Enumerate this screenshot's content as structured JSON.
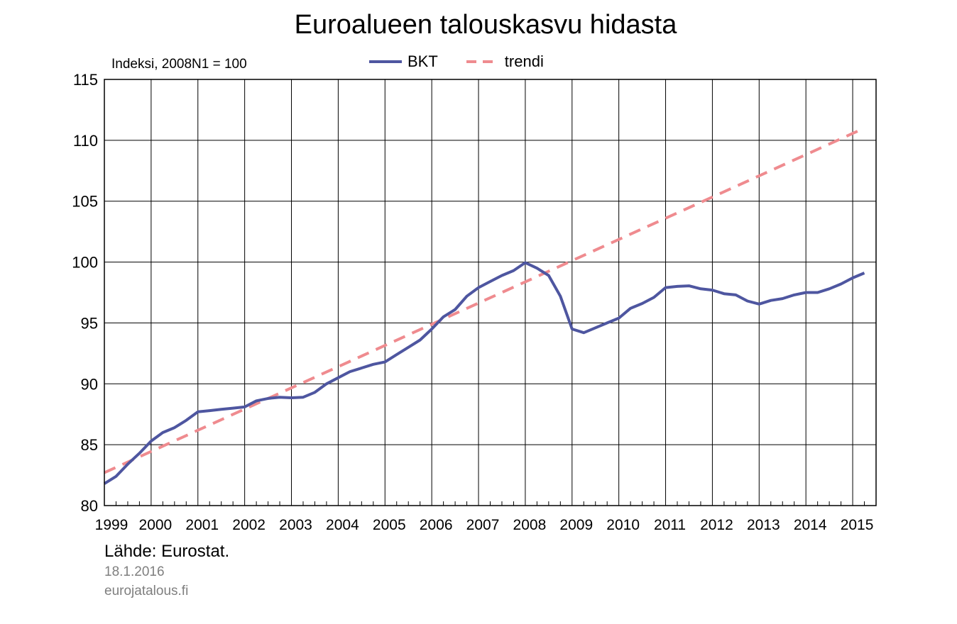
{
  "chart_data": {
    "type": "line",
    "title": "Euroalueen talouskasvu hidasta",
    "subtitle": "Indeksi, 2008N1 = 100",
    "ylim": [
      80,
      115
    ],
    "y_ticks": [
      "80",
      "85",
      "90",
      "95",
      "100",
      "105",
      "110",
      "115"
    ],
    "x_ticks": [
      "1999",
      "2000",
      "2001",
      "2002",
      "2003",
      "2004",
      "2005",
      "2006",
      "2007",
      "2008",
      "2009",
      "2010",
      "2011",
      "2012",
      "2013",
      "2014",
      "2015"
    ],
    "grid": true,
    "legend_position": "top-center",
    "series": [
      {
        "name": "BKT",
        "color": "#4e56a0",
        "style": "solid",
        "x": [
          1999.0,
          1999.25,
          1999.5,
          1999.75,
          2000.0,
          2000.25,
          2000.5,
          2000.75,
          2001.0,
          2001.25,
          2001.5,
          2001.75,
          2002.0,
          2002.25,
          2002.5,
          2002.75,
          2003.0,
          2003.25,
          2003.5,
          2003.75,
          2004.0,
          2004.25,
          2004.5,
          2004.75,
          2005.0,
          2005.25,
          2005.5,
          2005.75,
          2006.0,
          2006.25,
          2006.5,
          2006.75,
          2007.0,
          2007.25,
          2007.5,
          2007.75,
          2008.0,
          2008.25,
          2008.5,
          2008.75,
          2009.0,
          2009.25,
          2009.5,
          2009.75,
          2010.0,
          2010.25,
          2010.5,
          2010.75,
          2011.0,
          2011.25,
          2011.5,
          2011.75,
          2012.0,
          2012.25,
          2012.5,
          2012.75,
          2013.0,
          2013.25,
          2013.5,
          2013.75,
          2014.0,
          2014.25,
          2014.5,
          2014.75,
          2015.0,
          2015.25
        ],
        "values": [
          81.8,
          82.4,
          83.4,
          84.3,
          85.3,
          86.0,
          86.4,
          87.0,
          87.7,
          87.8,
          87.9,
          88.0,
          88.1,
          88.6,
          88.8,
          88.9,
          88.85,
          88.9,
          89.3,
          90.0,
          90.5,
          91.0,
          91.3,
          91.6,
          91.8,
          92.4,
          93.0,
          93.6,
          94.5,
          95.5,
          96.1,
          97.2,
          97.9,
          98.4,
          98.9,
          99.3,
          99.95,
          99.5,
          98.9,
          97.2,
          94.5,
          94.2,
          94.6,
          95.0,
          95.4,
          96.2,
          96.6,
          97.1,
          97.9,
          98.0,
          98.05,
          97.8,
          97.7,
          97.4,
          97.3,
          96.8,
          96.55,
          96.85,
          97.0,
          97.3,
          97.5,
          97.5,
          97.8,
          98.2,
          98.7,
          99.1
        ]
      },
      {
        "name": "trendi",
        "color": "#ef8b8f",
        "style": "dashed",
        "x": [
          1999.0,
          2015.25
        ],
        "values": [
          82.7,
          111.0
        ]
      }
    ]
  },
  "source": "Lähde: Eurostat.",
  "date": "18.1.2016",
  "site": "eurojatalous.fi"
}
